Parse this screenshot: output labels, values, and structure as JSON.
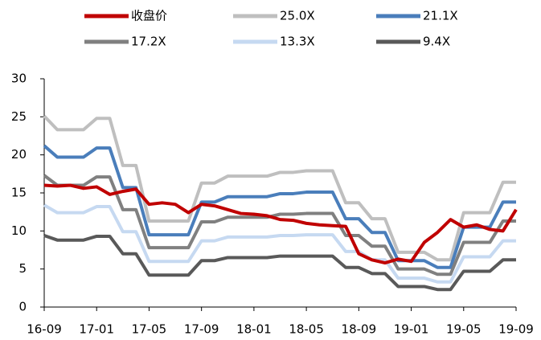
{
  "chart_data": {
    "type": "line",
    "categories": [
      "16-09",
      null,
      null,
      null,
      "17-01",
      null,
      null,
      null,
      "17-05",
      null,
      null,
      null,
      "17-09",
      null,
      null,
      null,
      "18-01",
      null,
      null,
      null,
      "18-05",
      null,
      null,
      null,
      "18-09",
      null,
      null,
      null,
      "19-01",
      null,
      null,
      null,
      "19-05",
      null,
      null,
      null,
      "19-09"
    ],
    "series": [
      {
        "name": "收盘价",
        "color": "#c00000",
        "values": [
          16,
          15.9,
          16,
          15.6,
          15.8,
          14.8,
          15.2,
          15.5,
          13.5,
          13.7,
          13.5,
          12.4,
          13.5,
          13.3,
          12.8,
          12.3,
          12.2,
          12.0,
          11.5,
          11.4,
          11.0,
          10.8,
          10.7,
          10.6,
          7.0,
          6.2,
          5.8,
          6.3,
          6.0,
          8.5,
          9.8,
          11.5,
          10.5,
          10.8,
          10.2,
          10.0,
          12.8
        ]
      },
      {
        "name": "25.0X",
        "color": "#bfbfbf",
        "values": [
          25.1,
          23.3,
          23.3,
          23.3,
          24.8,
          24.8,
          18.6,
          18.6,
          11.3,
          11.3,
          11.3,
          11.3,
          16.3,
          16.3,
          17.2,
          17.2,
          17.2,
          17.2,
          17.7,
          17.7,
          17.9,
          17.9,
          17.9,
          13.7,
          13.7,
          11.6,
          11.6,
          7.2,
          7.2,
          7.2,
          6.2,
          6.2,
          12.4,
          12.4,
          12.4,
          16.4,
          16.4
        ]
      },
      {
        "name": "21.1X",
        "color": "#4a7ebb",
        "values": [
          21.2,
          19.7,
          19.7,
          19.7,
          20.9,
          20.9,
          15.7,
          15.7,
          9.5,
          9.5,
          9.5,
          9.5,
          13.8,
          13.8,
          14.5,
          14.5,
          14.5,
          14.5,
          14.9,
          14.9,
          15.1,
          15.1,
          15.1,
          11.6,
          11.6,
          9.8,
          9.8,
          6.1,
          6.1,
          6.1,
          5.2,
          5.2,
          10.5,
          10.5,
          10.5,
          13.8,
          13.8
        ]
      },
      {
        "name": "17.2X",
        "color": "#808080",
        "values": [
          17.3,
          16.0,
          16.0,
          16.0,
          17.1,
          17.1,
          12.8,
          12.8,
          7.8,
          7.8,
          7.8,
          7.8,
          11.2,
          11.2,
          11.8,
          11.8,
          11.8,
          11.8,
          12.2,
          12.2,
          12.3,
          12.3,
          12.3,
          9.4,
          9.4,
          8.0,
          8.0,
          5.0,
          5.0,
          5.0,
          4.3,
          4.3,
          8.5,
          8.5,
          8.5,
          11.3,
          11.3
        ]
      },
      {
        "name": "13.3X",
        "color": "#c6d9f1",
        "values": [
          13.4,
          12.4,
          12.4,
          12.4,
          13.2,
          13.2,
          9.9,
          9.9,
          6.0,
          6.0,
          6.0,
          6.0,
          8.7,
          8.7,
          9.2,
          9.2,
          9.2,
          9.2,
          9.4,
          9.4,
          9.5,
          9.5,
          9.5,
          7.3,
          7.3,
          6.2,
          6.2,
          3.8,
          3.8,
          3.8,
          3.3,
          3.3,
          6.6,
          6.6,
          6.6,
          8.7,
          8.7
        ]
      },
      {
        "name": "9.4X",
        "color": "#595959",
        "values": [
          9.4,
          8.8,
          8.8,
          8.8,
          9.3,
          9.3,
          7.0,
          7.0,
          4.2,
          4.2,
          4.2,
          4.2,
          6.1,
          6.1,
          6.5,
          6.5,
          6.5,
          6.5,
          6.7,
          6.7,
          6.7,
          6.7,
          6.7,
          5.2,
          5.2,
          4.4,
          4.4,
          2.7,
          2.7,
          2.7,
          2.3,
          2.3,
          4.7,
          4.7,
          4.7,
          6.2,
          6.2
        ]
      }
    ],
    "ylim": [
      0,
      30
    ],
    "yticks": [
      0,
      5,
      10,
      15,
      20,
      25,
      30
    ],
    "legend": "top"
  }
}
